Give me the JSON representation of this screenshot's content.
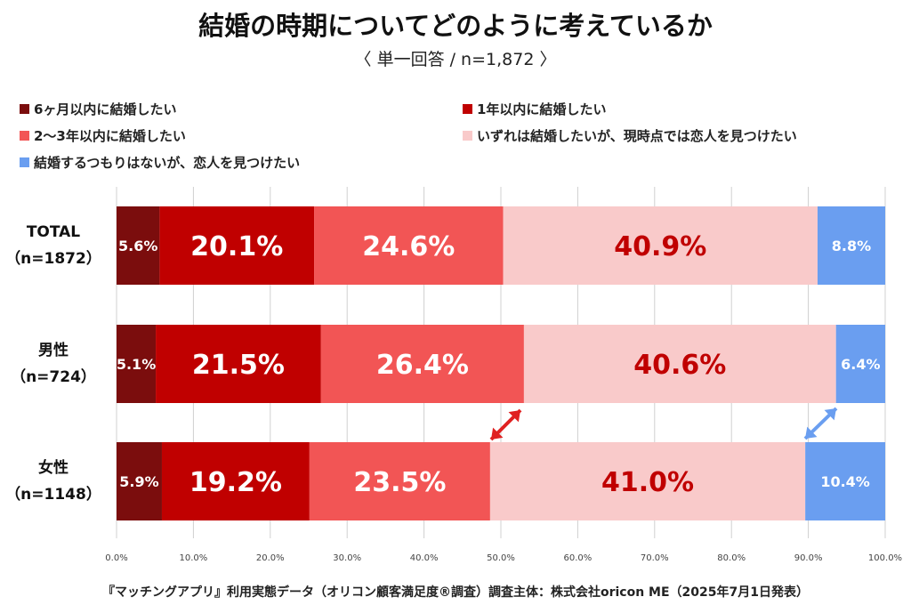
{
  "title": "結婚の時期についてどのように考えているか",
  "subtitle": "〈 単一回答 / n=1,872 〉",
  "footer": "『マッチングアプリ』利用実態データ（オリコン顧客満足度®調査）調査主体：株式会社oricon ME（2025年7月1日発表）",
  "chart_data": {
    "type": "bar",
    "orientation": "horizontal-stacked-100",
    "categories": [
      {
        "name": "TOTAL",
        "n": "（n=1872）"
      },
      {
        "name": "男性",
        "n": "（n=724）"
      },
      {
        "name": "女性",
        "n": "（n=1148）"
      }
    ],
    "series": [
      {
        "name": "6ヶ月以内に結婚したい",
        "color": "#7b0d0d",
        "values": [
          5.6,
          5.1,
          5.9
        ]
      },
      {
        "name": "1年以内に結婚したい",
        "color": "#c00000",
        "values": [
          20.1,
          21.5,
          19.2
        ]
      },
      {
        "name": "2〜3年以内に結婚したい",
        "color": "#f25555",
        "values": [
          24.6,
          26.4,
          23.5
        ]
      },
      {
        "name": "いずれは結婚したいが、現時点では恋人を見つけたい",
        "color": "#f9caca",
        "values": [
          40.9,
          40.6,
          41.0
        ]
      },
      {
        "name": "結婚するつもりはないが、恋人を見つけたい",
        "color": "#6a9ef0",
        "values": [
          8.8,
          6.4,
          10.4
        ]
      }
    ],
    "xticks": [
      "0.0%",
      "10.0%",
      "20.0%",
      "30.0%",
      "40.0%",
      "50.0%",
      "60.0%",
      "70.0%",
      "80.0%",
      "90.0%",
      "100.0%"
    ],
    "xlim": [
      0,
      100
    ],
    "grid": true,
    "legend_placement": "top"
  }
}
